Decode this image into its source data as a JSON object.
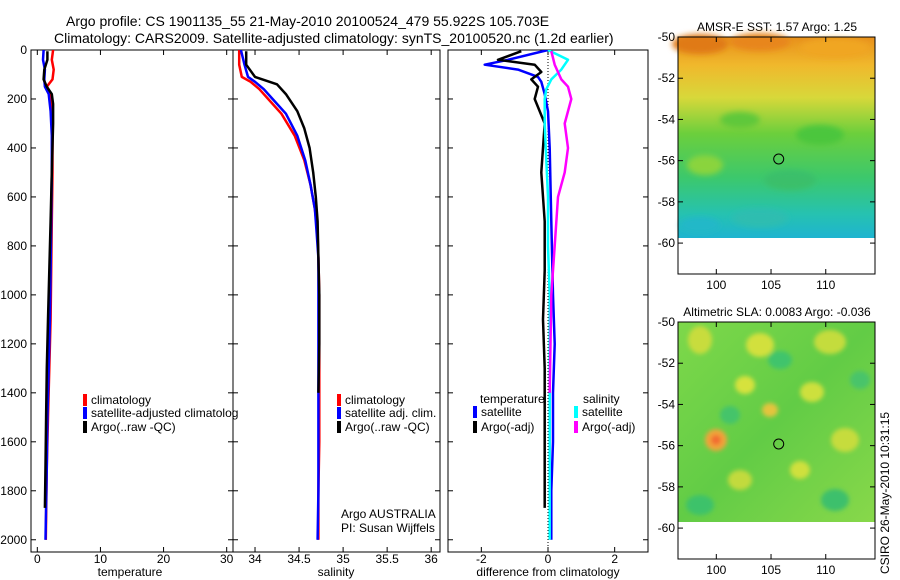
{
  "title": {
    "line1": "Argo profile: CS 1901135_55 21-May-2010 20100524_479 55.922S 105.703E",
    "line2": "Climatology: CARS2009. Satellite-adjusted climatology: synTS_20100520.nc (1.2d earlier)"
  },
  "credit": "CSIRO 26-May-2010 10:31:15",
  "colors": {
    "climatology": "#ff0000",
    "satellite": "#0000ff",
    "argo": "#000000",
    "salinity_satellite": "#00ffff",
    "salinity_argo": "#ff00ff"
  },
  "chart_data": [
    {
      "type": "line",
      "id": "temperature",
      "xlabel": "temperature",
      "xlim": [
        -1,
        31
      ],
      "xticks": [
        0,
        10,
        20,
        30
      ],
      "ylim": [
        0,
        2050
      ],
      "yticks": [
        0,
        200,
        400,
        600,
        800,
        1000,
        1200,
        1400,
        1600,
        1800,
        2000
      ],
      "y_reversed": true,
      "legend": [
        "climatology",
        "satellite-adjusted climatolog",
        "Argo(..raw -QC)"
      ],
      "series": [
        {
          "name": "climatology",
          "color": "#ff0000",
          "x": [
            2.5,
            2.3,
            2.6,
            2.4,
            1.5,
            2.0,
            2.3,
            2.4,
            2.4,
            2.3,
            2.2,
            2.1,
            1.9,
            1.7,
            1.5,
            1.35
          ],
          "y": [
            0,
            40,
            80,
            120,
            150,
            180,
            250,
            350,
            500,
            700,
            900,
            1100,
            1300,
            1500,
            1700,
            2000
          ]
        },
        {
          "name": "satellite-adjusted climatology",
          "color": "#0000ff",
          "x": [
            1.0,
            0.9,
            1.2,
            1.1,
            1.2,
            1.8,
            2.1,
            2.3,
            2.3,
            2.2,
            2.1,
            2.0,
            1.8,
            1.6,
            1.5,
            1.3
          ],
          "y": [
            0,
            40,
            80,
            120,
            150,
            180,
            250,
            350,
            500,
            700,
            900,
            1100,
            1300,
            1500,
            1700,
            2000
          ]
        },
        {
          "name": "Argo(..raw -QC)",
          "color": "#000000",
          "x": [
            1.6,
            1.6,
            1.1,
            1.0,
            1.5,
            2.3,
            2.5,
            2.5,
            2.3,
            2.1,
            1.9,
            1.7,
            1.5,
            1.4,
            1.3,
            1.2
          ],
          "y": [
            5,
            40,
            80,
            120,
            150,
            180,
            220,
            300,
            500,
            700,
            900,
            1100,
            1300,
            1500,
            1700,
            1870
          ]
        }
      ]
    },
    {
      "type": "line",
      "id": "salinity",
      "xlabel": "salinity",
      "xlim": [
        33.75,
        36.1
      ],
      "xticks": [
        34,
        34.5,
        35,
        35.5,
        36
      ],
      "xticklabels": [
        "34",
        "34.5",
        "35",
        "35.5",
        "36"
      ],
      "ylim": [
        0,
        2050
      ],
      "y_reversed": true,
      "legend": [
        "climatology",
        "satellite adj. clim.",
        "Argo(..raw -QC)"
      ],
      "annotation": [
        "Argo AUSTRALIA",
        "PI: Susan Wijffels"
      ],
      "series": [
        {
          "name": "climatology",
          "color": "#ff0000",
          "x": [
            33.82,
            33.82,
            33.85,
            33.95,
            34.05,
            34.15,
            34.3,
            34.45,
            34.56,
            34.63,
            34.68,
            34.71,
            34.72,
            34.73,
            34.73,
            34.73,
            34.73,
            34.72,
            34.72
          ],
          "y": [
            0,
            60,
            110,
            130,
            160,
            200,
            260,
            350,
            450,
            550,
            650,
            750,
            850,
            1000,
            1200,
            1400,
            1600,
            1800,
            2000
          ]
        },
        {
          "name": "satellite adj. clim.",
          "color": "#0000ff",
          "x": [
            33.84,
            33.88,
            33.92,
            34.0,
            34.1,
            34.2,
            34.35,
            34.48,
            34.57,
            34.63,
            34.68,
            34.7,
            34.72,
            34.72,
            34.72,
            34.72,
            34.72,
            34.72,
            34.71
          ],
          "y": [
            0,
            60,
            110,
            130,
            160,
            200,
            260,
            350,
            450,
            550,
            650,
            750,
            850,
            1000,
            1200,
            1400,
            1600,
            1800,
            2000
          ]
        },
        {
          "name": "Argo(..raw -QC)",
          "color": "#000000",
          "x": [
            33.9,
            33.9,
            34.0,
            34.25,
            34.35,
            34.48,
            34.56,
            34.62,
            34.66,
            34.69,
            34.71,
            34.72,
            34.73,
            34.73,
            34.72
          ],
          "y": [
            5,
            60,
            110,
            140,
            180,
            250,
            320,
            400,
            500,
            600,
            700,
            850,
            1000,
            1200,
            1400
          ]
        }
      ]
    },
    {
      "type": "line",
      "id": "difference",
      "xlabel": "difference from climatology",
      "xlim": [
        -3,
        3
      ],
      "xticks": [
        -2,
        0,
        2
      ],
      "ylim": [
        0,
        2050
      ],
      "y_reversed": true,
      "legend_groups": [
        {
          "heading": "temperature",
          "items": [
            "satellite",
            "Argo(-adj)"
          ]
        },
        {
          "heading": "salinity",
          "items": [
            "satellite",
            "Argo(-adj)"
          ]
        }
      ],
      "series": [
        {
          "name": "temperature satellite",
          "color": "#0000ff",
          "x": [
            0.0,
            -1.2,
            -1.9,
            -0.9,
            -0.3,
            -0.2,
            -0.1,
            0.0,
            0.05,
            0.1,
            0.15,
            0.2,
            0.15,
            0.15,
            0.1,
            0.1
          ],
          "y": [
            0,
            40,
            60,
            80,
            110,
            130,
            180,
            250,
            400,
            700,
            1000,
            1200,
            1400,
            1600,
            1800,
            2000
          ]
        },
        {
          "name": "temperature Argo(-adj)",
          "color": "#000000",
          "x": [
            -0.8,
            -1.5,
            -0.4,
            -0.2,
            -0.5,
            -0.3,
            -0.4,
            -0.1,
            -0.2,
            -0.1,
            -0.1,
            -0.15,
            -0.1,
            -0.1,
            -0.1,
            -0.1
          ],
          "y": [
            5,
            40,
            60,
            90,
            120,
            150,
            200,
            300,
            500,
            700,
            900,
            1100,
            1300,
            1500,
            1700,
            1870
          ]
        },
        {
          "name": "salinity satellite",
          "color": "#00ffff",
          "x": [
            0.0,
            0.6,
            0.4,
            0.1,
            -0.05,
            -0.1,
            -0.1,
            -0.05,
            0.0,
            0.0,
            0.05,
            0.05,
            0.05,
            0.05,
            0.05
          ],
          "y": [
            0,
            40,
            80,
            120,
            160,
            200,
            300,
            450,
            600,
            800,
            1000,
            1200,
            1500,
            1800,
            2000
          ]
        },
        {
          "name": "salinity Argo(-adj)",
          "color": "#ff00ff",
          "x": [
            0.1,
            0.2,
            0.4,
            0.6,
            0.7,
            0.5,
            0.6,
            0.5,
            0.3,
            0.2,
            0.1,
            0.05
          ],
          "y": [
            5,
            60,
            120,
            150,
            200,
            300,
            400,
            500,
            600,
            800,
            1000,
            1400
          ]
        }
      ]
    },
    {
      "type": "heatmap",
      "id": "sst-map",
      "title": "AMSR-E SST: 1.57  Argo: 1.25",
      "xlim": [
        96.5,
        114.5
      ],
      "ylim": [
        -61.5,
        -50
      ],
      "xticks": [
        100,
        105,
        110
      ],
      "yticks": [
        -50,
        -52,
        -54,
        -56,
        -58,
        -60
      ],
      "data_bottom": -60,
      "marker": {
        "lon": 105.703,
        "lat": -55.922
      }
    },
    {
      "type": "heatmap",
      "id": "sla-map",
      "title": "Altimetric SLA: 0.0083  Argo: -0.036",
      "xlim": [
        96.5,
        114.5
      ],
      "ylim": [
        -61.5,
        -50
      ],
      "xticks": [
        100,
        105,
        110
      ],
      "yticks": [
        -50,
        -52,
        -54,
        -56,
        -58,
        -60
      ],
      "data_bottom": -60,
      "marker": {
        "lon": 105.703,
        "lat": -55.922
      }
    }
  ]
}
